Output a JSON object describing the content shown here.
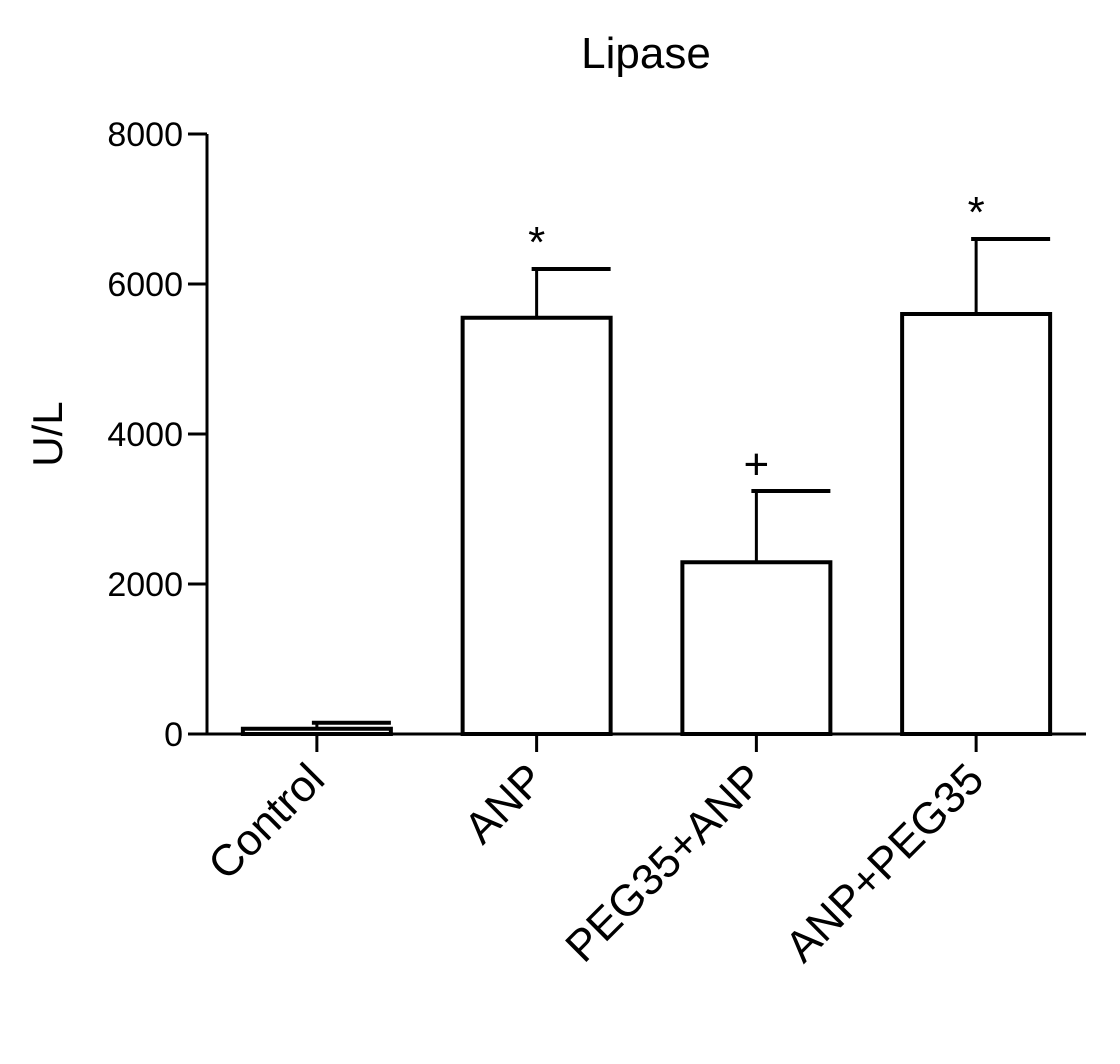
{
  "chart_data": {
    "type": "bar",
    "title": "Lipase",
    "xlabel": "",
    "ylabel": "U/L",
    "ylim": [
      0,
      8000
    ],
    "yticks": [
      0,
      2000,
      4000,
      6000,
      8000
    ],
    "ytick_labels": [
      "0",
      "2000",
      "4000",
      "6000",
      "8000"
    ],
    "categories": [
      "Control",
      "ANP",
      "PEG35+ANP",
      "ANP+PEG35"
    ],
    "values": [
      70,
      5550,
      2290,
      5600
    ],
    "error_upper": [
      80,
      650,
      950,
      1000
    ],
    "annotations": [
      "",
      "*",
      "+",
      "*"
    ],
    "bar_fill": "#ffffff",
    "bar_stroke": "#000000",
    "grid": false,
    "legend": "none"
  }
}
